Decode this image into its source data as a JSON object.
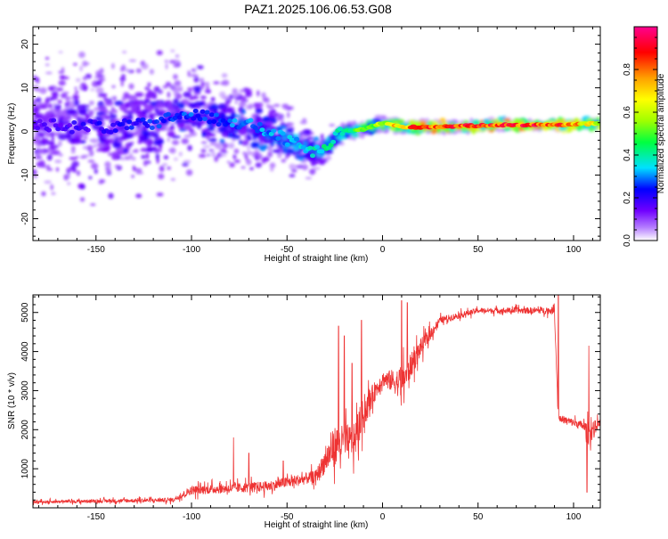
{
  "title": "PAZ1.2025.106.06.53.G08",
  "chart_data": [
    {
      "type": "heatmap",
      "xlabel": "Height of straight line (km)",
      "ylabel": "Frequency (Hz)",
      "xlim": [
        -183,
        114
      ],
      "ylim": [
        -25,
        24
      ],
      "x_ticks": [
        -150,
        -100,
        -50,
        0,
        50,
        100
      ],
      "y_ticks": [
        -20,
        -10,
        0,
        10,
        20
      ],
      "colorbar": {
        "label": "Normalized spectral amplitude",
        "range": [
          0,
          1
        ],
        "ticks": [
          0.0,
          0.2,
          0.4,
          0.6,
          0.8
        ],
        "tick_labels": [
          "0.0",
          "0.2",
          "0.4",
          "0.6",
          "0.8"
        ],
        "colors": [
          "#ffffff",
          "#b680ff",
          "#7000ff",
          "#0000ff",
          "#00e0ff",
          "#00ff40",
          "#a0ff00",
          "#ffff00",
          "#ffa000",
          "#ff0000",
          "#ff0090"
        ]
      },
      "ridge": [
        {
          "x": -180,
          "f": 1.2
        },
        {
          "x": -170,
          "f": 1.8
        },
        {
          "x": -160,
          "f": 0.8
        },
        {
          "x": -150,
          "f": 1.5
        },
        {
          "x": -140,
          "f": 0.5
        },
        {
          "x": -130,
          "f": 2.0
        },
        {
          "x": -120,
          "f": 1.0
        },
        {
          "x": -110,
          "f": 3.5
        },
        {
          "x": -100,
          "f": 4.0
        },
        {
          "x": -90,
          "f": 3.0
        },
        {
          "x": -80,
          "f": 2.5
        },
        {
          "x": -70,
          "f": 1.5
        },
        {
          "x": -60,
          "f": 0.0
        },
        {
          "x": -50,
          "f": -2.0
        },
        {
          "x": -40,
          "f": -4.0
        },
        {
          "x": -32,
          "f": -5.0
        },
        {
          "x": -25,
          "f": -1.5
        },
        {
          "x": -20,
          "f": 0.0
        },
        {
          "x": -10,
          "f": 0.5
        },
        {
          "x": 0,
          "f": 2.0
        },
        {
          "x": 10,
          "f": 1.0
        },
        {
          "x": 20,
          "f": 1.0
        },
        {
          "x": 40,
          "f": 1.2
        },
        {
          "x": 60,
          "f": 1.5
        },
        {
          "x": 80,
          "f": 1.5
        },
        {
          "x": 100,
          "f": 1.6
        },
        {
          "x": 113,
          "f": 1.8
        }
      ],
      "scatter_spread_hz": [
        {
          "x": -180,
          "spread": 20
        },
        {
          "x": -120,
          "spread": 18
        },
        {
          "x": -80,
          "spread": 12
        },
        {
          "x": -40,
          "spread": 8
        },
        {
          "x": -20,
          "spread": 2
        },
        {
          "x": 113,
          "spread": 1
        }
      ],
      "amplitude_trend": [
        {
          "x": -180,
          "a": 0.18
        },
        {
          "x": -110,
          "a": 0.28
        },
        {
          "x": -50,
          "a": 0.35
        },
        {
          "x": -30,
          "a": 0.45
        },
        {
          "x": -10,
          "a": 0.55
        },
        {
          "x": 5,
          "a": 0.72
        },
        {
          "x": 20,
          "a": 0.95
        },
        {
          "x": 50,
          "a": 0.9
        },
        {
          "x": 90,
          "a": 0.95
        },
        {
          "x": 113,
          "a": 0.7
        }
      ]
    },
    {
      "type": "line",
      "xlabel": "Height of straight line (km)",
      "ylabel": "SNR (10 * v/v)",
      "xlim": [
        -183,
        114
      ],
      "ylim": [
        0,
        5450
      ],
      "x_ticks": [
        -150,
        -100,
        -50,
        0,
        50,
        100
      ],
      "y_ticks": [
        1000,
        2000,
        3000,
        4000,
        5000
      ],
      "series": [
        {
          "color": "#ee3333",
          "envelope": [
            {
              "x": -183,
              "base": 150,
              "noise": 80
            },
            {
              "x": -110,
              "base": 200,
              "noise": 120
            },
            {
              "x": -100,
              "base": 450,
              "noise": 250
            },
            {
              "x": -60,
              "base": 550,
              "noise": 300
            },
            {
              "x": -35,
              "base": 800,
              "noise": 350
            },
            {
              "x": -25,
              "base": 1600,
              "noise": 1100
            },
            {
              "x": -15,
              "base": 1700,
              "noise": 1000
            },
            {
              "x": -10,
              "base": 2400,
              "noise": 900
            },
            {
              "x": -5,
              "base": 2900,
              "noise": 600
            },
            {
              "x": 0,
              "base": 3300,
              "noise": 400
            },
            {
              "x": 10,
              "base": 3200,
              "noise": 900
            },
            {
              "x": 20,
              "base": 4100,
              "noise": 500
            },
            {
              "x": 30,
              "base": 4800,
              "noise": 200
            },
            {
              "x": 50,
              "base": 5050,
              "noise": 150
            },
            {
              "x": 90,
              "base": 5050,
              "noise": 200
            },
            {
              "x": 92,
              "base": 2300,
              "noise": 200
            },
            {
              "x": 105,
              "base": 2100,
              "noise": 250
            },
            {
              "x": 108,
              "base": 1900,
              "noise": 700
            },
            {
              "x": 114,
              "base": 2200,
              "noise": 150
            }
          ],
          "spikes": [
            {
              "x": -78,
              "y": 1800
            },
            {
              "x": -70,
              "y": 1400
            },
            {
              "x": -52,
              "y": 1200
            },
            {
              "x": -23,
              "y": 4650
            },
            {
              "x": -20,
              "y": 4400
            },
            {
              "x": -16,
              "y": 3700
            },
            {
              "x": -11,
              "y": 4800
            },
            {
              "x": 10,
              "y": 5300
            },
            {
              "x": 13,
              "y": 5250
            },
            {
              "x": 92,
              "y": 5450
            },
            {
              "x": 107,
              "y": 400
            },
            {
              "x": 108,
              "y": 4150
            }
          ]
        }
      ]
    }
  ]
}
